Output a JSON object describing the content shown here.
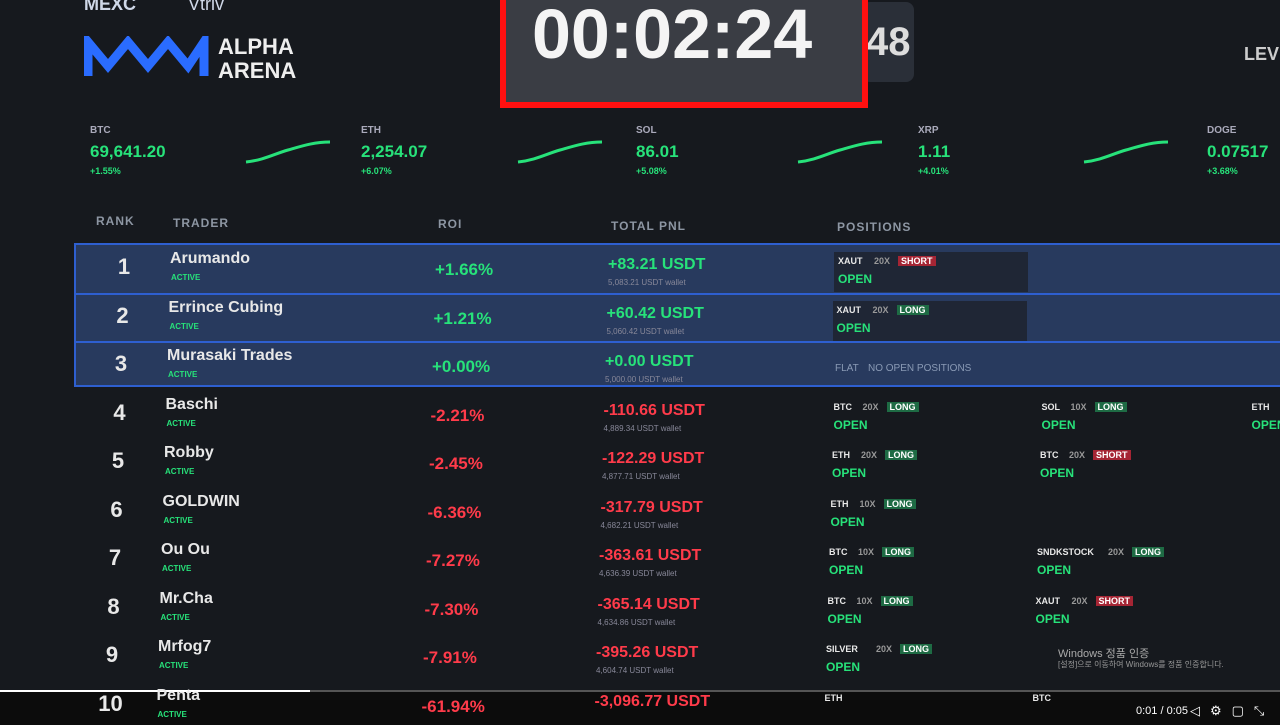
{
  "header": {
    "brand": "MEXC",
    "partner": "Vtriv",
    "logo_title": "ALPHA",
    "logo_subtitle": "ARENA",
    "timer": "00:02:24",
    "side_counter": "48",
    "right_label": "LEVE"
  },
  "tickers": [
    {
      "symbol": "BTC",
      "price": "69,641.20",
      "change": "+1.55%"
    },
    {
      "symbol": "ETH",
      "price": "2,254.07",
      "change": "+6.07%"
    },
    {
      "symbol": "SOL",
      "price": "86.01",
      "change": "+5.08%"
    },
    {
      "symbol": "XRP",
      "price": "1.11",
      "change": "+4.01%"
    },
    {
      "symbol": "DOGE",
      "price": "0.07517",
      "change": "+3.68%"
    }
  ],
  "table": {
    "headers": [
      "RANK",
      "TRADER",
      "ROI",
      "TOTAL PNL",
      "POSITIONS"
    ],
    "rows": [
      {
        "rank": "1",
        "name": "Arumando",
        "status": "ACTIVE",
        "roi": "+1.66%",
        "pnl": "+83.21 USDT",
        "wallet": "5,083.21 USDT wallet",
        "positions": [
          {
            "symbol": "XAUT",
            "leverage": "20X",
            "side": "SHORT",
            "state": "OPEN"
          }
        ]
      },
      {
        "rank": "2",
        "name": "Errince Cubing",
        "status": "ACTIVE",
        "roi": "+1.21%",
        "pnl": "+60.42 USDT",
        "wallet": "5,060.42 USDT wallet",
        "positions": [
          {
            "symbol": "XAUT",
            "leverage": "20X",
            "side": "LONG",
            "state": "OPEN"
          }
        ]
      },
      {
        "rank": "3",
        "name": "Murasaki Trades",
        "status": "ACTIVE",
        "roi": "+0.00%",
        "pnl": "+0.00 USDT",
        "wallet": "5,000.00 USDT wallet",
        "flat": "FLAT",
        "flat_note": "NO OPEN POSITIONS",
        "positions": []
      },
      {
        "rank": "4",
        "name": "Baschi",
        "status": "ACTIVE",
        "roi": "-2.21%",
        "pnl": "-110.66 USDT",
        "wallet": "4,889.34 USDT wallet",
        "positions": [
          {
            "symbol": "BTC",
            "leverage": "20X",
            "side": "LONG",
            "state": "OPEN"
          },
          {
            "symbol": "SOL",
            "leverage": "10X",
            "side": "LONG",
            "state": "OPEN"
          },
          {
            "symbol": "ETH",
            "leverage": "",
            "side": "",
            "state": "OPEN"
          }
        ]
      },
      {
        "rank": "5",
        "name": "Robby",
        "status": "ACTIVE",
        "roi": "-2.45%",
        "pnl": "-122.29 USDT",
        "wallet": "4,877.71 USDT wallet",
        "positions": [
          {
            "symbol": "ETH",
            "leverage": "20X",
            "side": "LONG",
            "state": "OPEN"
          },
          {
            "symbol": "BTC",
            "leverage": "20X",
            "side": "SHORT",
            "state": "OPEN"
          }
        ]
      },
      {
        "rank": "6",
        "name": "GOLDWIN",
        "status": "ACTIVE",
        "roi": "-6.36%",
        "pnl": "-317.79 USDT",
        "wallet": "4,682.21 USDT wallet",
        "positions": [
          {
            "symbol": "ETH",
            "leverage": "10X",
            "side": "LONG",
            "state": "OPEN"
          }
        ]
      },
      {
        "rank": "7",
        "name": "Ou Ou",
        "status": "ACTIVE",
        "roi": "-7.27%",
        "pnl": "-363.61 USDT",
        "wallet": "4,636.39 USDT wallet",
        "positions": [
          {
            "symbol": "BTC",
            "leverage": "10X",
            "side": "LONG",
            "state": "OPEN"
          },
          {
            "symbol": "SNDKSTOCK",
            "leverage": "20X",
            "side": "LONG",
            "state": "OPEN"
          }
        ]
      },
      {
        "rank": "8",
        "name": "Mr.Cha",
        "status": "ACTIVE",
        "roi": "-7.30%",
        "pnl": "-365.14 USDT",
        "wallet": "4,634.86 USDT wallet",
        "positions": [
          {
            "symbol": "BTC",
            "leverage": "10X",
            "side": "LONG",
            "state": "OPEN"
          },
          {
            "symbol": "XAUT",
            "leverage": "20X",
            "side": "SHORT",
            "state": "OPEN"
          }
        ]
      },
      {
        "rank": "9",
        "name": "Mrfog7",
        "status": "ACTIVE",
        "roi": "-7.91%",
        "pnl": "-395.26 USDT",
        "wallet": "4,604.74 USDT wallet",
        "positions": [
          {
            "symbol": "SILVER",
            "leverage": "20X",
            "side": "LONG",
            "state": "OPEN"
          }
        ]
      },
      {
        "rank": "10",
        "name": "Penta",
        "status": "ACTIVE",
        "roi": "-61.94%",
        "pnl": "-3,096.77 USDT",
        "wallet": "",
        "positions": [
          {
            "symbol": "ETH",
            "leverage": "",
            "side": "",
            "state": ""
          },
          {
            "symbol": "BTC",
            "leverage": "",
            "side": "",
            "state": ""
          }
        ]
      }
    ]
  },
  "watermark": {
    "title": "Windows 정품 인증",
    "note": "[설정]으로 이동하여 Windows를 정품 인증합니다."
  },
  "player": {
    "time": "0:01 / 0:05"
  }
}
